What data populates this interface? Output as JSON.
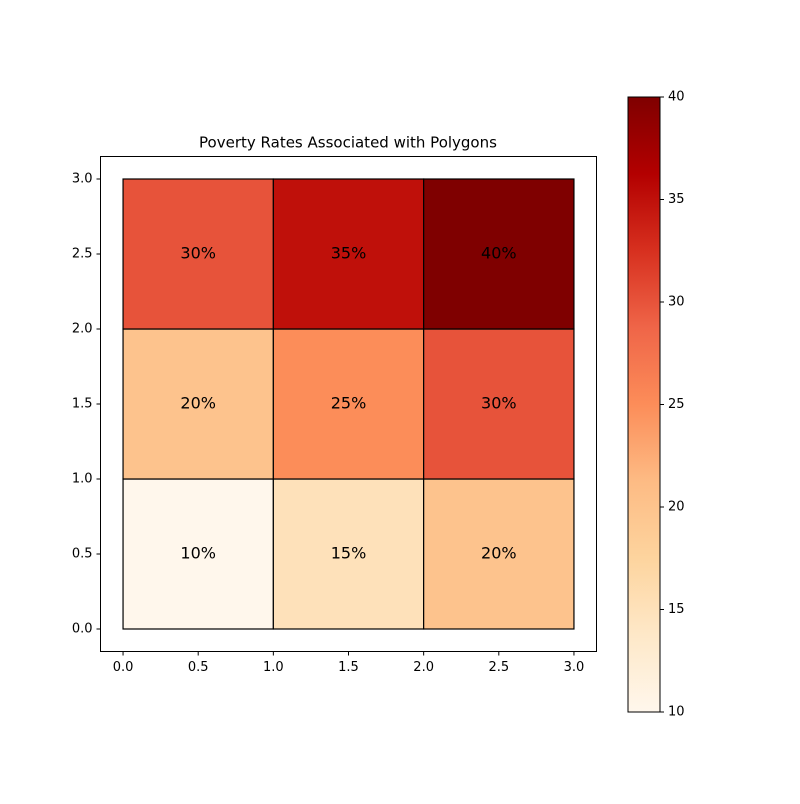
{
  "chart_data": {
    "type": "heatmap",
    "title": "Poverty Rates Associated with Polygons",
    "x_edges": [
      0,
      1,
      2,
      3
    ],
    "y_edges": [
      0,
      1,
      2,
      3
    ],
    "values": [
      [
        10,
        15,
        20
      ],
      [
        20,
        25,
        30
      ],
      [
        30,
        35,
        40
      ]
    ],
    "value_labels": [
      [
        "10%",
        "15%",
        "20%"
      ],
      [
        "20%",
        "25%",
        "30%"
      ],
      [
        "30%",
        "35%",
        "40%"
      ]
    ],
    "xlim": [
      -0.15,
      3.15
    ],
    "ylim": [
      -0.15,
      3.15
    ],
    "xticks": [
      {
        "value": 0,
        "label": "0.0"
      },
      0.5,
      {
        "value": 1,
        "label": "1.0"
      },
      1.5,
      {
        "value": 2,
        "label": "2.0"
      },
      2.5,
      {
        "value": 3,
        "label": "3.0"
      }
    ],
    "yticks": [
      {
        "value": 0,
        "label": "0.0"
      },
      0.5,
      {
        "value": 1,
        "label": "1.0"
      },
      1.5,
      {
        "value": 2,
        "label": "2.0"
      },
      2.5,
      {
        "value": 3,
        "label": "3.0"
      }
    ],
    "colormap": [
      "#fff7ec",
      "#fee8c8",
      "#fdd49e",
      "#fdbb84",
      "#fc8d59",
      "#ef6548",
      "#d7301f",
      "#b30000",
      "#7f0000"
    ],
    "colorbar": {
      "lim": [
        10,
        40
      ],
      "ticks": [
        10,
        15,
        20,
        25,
        30,
        35,
        40
      ]
    }
  }
}
